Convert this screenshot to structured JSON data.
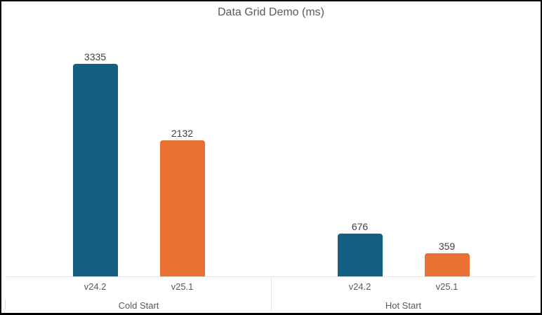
{
  "chart_data": {
    "type": "bar",
    "title": "Data Grid Demo (ms)",
    "unit": "ms",
    "ylim": [
      0,
      3500
    ],
    "gridlines": false,
    "value_axis_visible": false,
    "data_labels": true,
    "legend": "none",
    "series": [
      {
        "name": "v24.2",
        "color": "#156082"
      },
      {
        "name": "v25.1",
        "color": "#E97132"
      }
    ],
    "categories": [
      "Cold Start",
      "Hot Start"
    ],
    "groups": [
      {
        "label": "Cold Start",
        "bars": [
          {
            "series": "v24.2",
            "value": 3335
          },
          {
            "series": "v25.1",
            "value": 2132
          }
        ]
      },
      {
        "label": "Hot Start",
        "bars": [
          {
            "series": "v24.2",
            "value": 676
          },
          {
            "series": "v25.1",
            "value": 359
          }
        ]
      }
    ],
    "axis_line_color": "#e4e4e4",
    "title_color": "#595959",
    "data_label_color": "#404040"
  }
}
